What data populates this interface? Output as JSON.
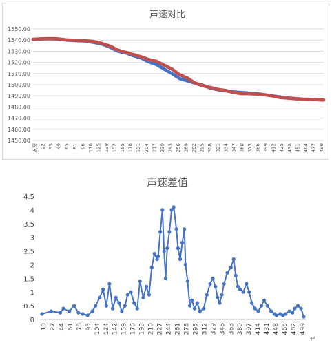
{
  "charts": [
    {
      "title": "声速对比",
      "type": "line",
      "ylim": [
        1450,
        1550
      ],
      "yticks": [
        "1550.00",
        "1540.00",
        "1530.00",
        "1520.00",
        "1510.00",
        "1500.00",
        "1490.00",
        "1480.00",
        "1470.00",
        "1460.00",
        "1450.00"
      ],
      "xticks": [
        "水深",
        "22",
        "35",
        "49",
        "65",
        "81",
        "96",
        "110",
        "125",
        "139",
        "152",
        "165",
        "178",
        "191",
        "204",
        "217",
        "230",
        "243",
        "256",
        "269",
        "282",
        "295",
        "308",
        "321",
        "334",
        "347",
        "360",
        "373",
        "386",
        "399",
        "412",
        "425",
        "438",
        "451",
        "464",
        "477",
        "490"
      ],
      "grid": true,
      "colors": {
        "series_a": "#4472c4",
        "series_b": "#c0504d",
        "grid": "#d9d9d9"
      }
    },
    {
      "title": "声速差值",
      "type": "line",
      "ylim": [
        0,
        4.5
      ],
      "yticks": [
        "4.5",
        "4",
        "3.5",
        "3",
        "2.5",
        "2",
        "1.5",
        "1",
        "0.5",
        "0"
      ],
      "xticks": [
        "10",
        "27",
        "44",
        "61",
        "78",
        "95",
        "104",
        "124",
        "142",
        "159",
        "176",
        "193",
        "210",
        "227",
        "244",
        "261",
        "278",
        "295",
        "312",
        "329",
        "346",
        "363",
        "380",
        "397",
        "414",
        "431",
        "448",
        "465",
        "482",
        "499"
      ],
      "grid": false,
      "colors": {
        "series": "#4472c4",
        "axis": "#bfbfbf"
      }
    }
  ],
  "chart_data": [
    {
      "type": "line",
      "title": "声速对比",
      "xlabel": "",
      "ylabel": "",
      "ylim": [
        1450,
        1550
      ],
      "x_range": [
        9,
        499
      ],
      "series": [
        {
          "color": "#4472c4",
          "x": [
            9,
            22,
            35,
            49,
            65,
            81,
            96,
            110,
            125,
            139,
            152,
            165,
            178,
            191,
            204,
            217,
            230,
            243,
            256,
            269,
            282,
            295,
            308,
            321,
            334,
            347,
            360,
            373,
            386,
            399,
            412,
            425,
            438,
            451,
            464,
            477,
            490,
            499
          ],
          "values": [
            1540.5,
            1541.0,
            1541.2,
            1541.0,
            1540.0,
            1539.5,
            1539.2,
            1538.0,
            1536.5,
            1533.5,
            1530.0,
            1528.5,
            1526.0,
            1524.0,
            1520.5,
            1518.0,
            1514.0,
            1510.0,
            1505.5,
            1503.5,
            1501.5,
            1499.5,
            1497.0,
            1495.5,
            1494.5,
            1493.5,
            1493.0,
            1492.5,
            1492.0,
            1491.0,
            1490.0,
            1489.0,
            1488.0,
            1487.5,
            1487.0,
            1486.8,
            1486.5,
            1486.3
          ]
        },
        {
          "color": "#c0504d",
          "x": [
            9,
            22,
            35,
            49,
            65,
            81,
            96,
            110,
            125,
            139,
            152,
            165,
            178,
            191,
            204,
            217,
            230,
            243,
            256,
            269,
            282,
            295,
            308,
            321,
            334,
            347,
            360,
            373,
            386,
            399,
            412,
            425,
            438,
            451,
            464,
            477,
            490,
            499
          ],
          "values": [
            1540.7,
            1541.1,
            1541.3,
            1541.2,
            1540.2,
            1539.7,
            1539.5,
            1538.8,
            1537.0,
            1534.5,
            1531.0,
            1529.0,
            1527.0,
            1525.0,
            1522.5,
            1521.0,
            1517.5,
            1514.0,
            1509.0,
            1506.0,
            1501.5,
            1499.0,
            1497.5,
            1495.8,
            1494.8,
            1493.0,
            1492.0,
            1492.0,
            1491.5,
            1491.0,
            1490.0,
            1488.5,
            1488.0,
            1487.5,
            1487.0,
            1486.8,
            1486.6,
            1486.4
          ]
        }
      ]
    },
    {
      "type": "line",
      "title": "声速差值",
      "xlabel": "",
      "ylabel": "",
      "ylim": [
        0,
        4.5
      ],
      "x_range": [
        10,
        499
      ],
      "series": [
        {
          "color": "#4472c4",
          "x": [
            10,
            27,
            44,
            50,
            61,
            70,
            78,
            86,
            95,
            104,
            110,
            118,
            124,
            130,
            136,
            142,
            148,
            154,
            159,
            165,
            170,
            176,
            182,
            188,
            193,
            199,
            205,
            210,
            215,
            220,
            225,
            227,
            231,
            235,
            238,
            241,
            244,
            248,
            252,
            256,
            261,
            264,
            268,
            272,
            276,
            278,
            282,
            286,
            290,
            295,
            300,
            305,
            312,
            318,
            324,
            329,
            334,
            338,
            342,
            346,
            350,
            356,
            363,
            368,
            372,
            376,
            380,
            386,
            392,
            397,
            402,
            408,
            414,
            420,
            425,
            431,
            438,
            444,
            448,
            455,
            460,
            465,
            472,
            478,
            482,
            488,
            494,
            499
          ],
          "values": [
            0.2,
            0.3,
            0.25,
            0.4,
            0.3,
            0.5,
            0.25,
            0.2,
            0.15,
            0.3,
            0.5,
            0.8,
            1.1,
            0.5,
            1.3,
            0.4,
            0.8,
            0.6,
            0.3,
            0.5,
            0.9,
            1.0,
            0.6,
            0.4,
            1.4,
            0.8,
            1.2,
            0.9,
            1.9,
            2.4,
            2.2,
            2.3,
            3.2,
            4.0,
            2.5,
            1.5,
            2.6,
            3.2,
            4.0,
            4.1,
            3.3,
            2.6,
            2.2,
            2.8,
            3.3,
            2.0,
            1.4,
            0.5,
            0.7,
            0.4,
            0.6,
            0.3,
            0.4,
            0.9,
            1.3,
            1.5,
            1.2,
            0.8,
            0.6,
            0.9,
            1.3,
            1.7,
            1.9,
            2.2,
            1.6,
            1.2,
            1.1,
            1.0,
            1.3,
            1.0,
            0.6,
            0.4,
            0.3,
            0.5,
            0.7,
            0.5,
            0.3,
            0.2,
            0.15,
            0.2,
            0.15,
            0.2,
            0.3,
            0.25,
            0.4,
            0.5,
            0.4,
            0.1
          ]
        }
      ]
    }
  ]
}
